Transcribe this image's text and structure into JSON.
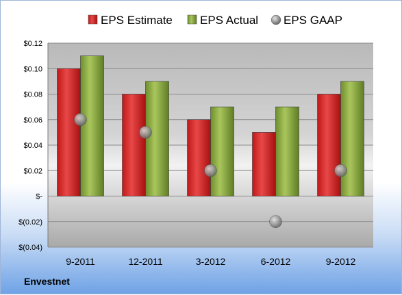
{
  "company": "Envestnet",
  "chart_data": {
    "type": "bar",
    "categories": [
      "9-2011",
      "12-2011",
      "3-2012",
      "6-2012",
      "9-2012"
    ],
    "series": [
      {
        "name": "EPS Estimate",
        "kind": "bar",
        "color": "#cc1f1f",
        "values": [
          0.1,
          0.08,
          0.06,
          0.05,
          0.08
        ]
      },
      {
        "name": "EPS Actual",
        "kind": "bar",
        "color": "#7d9c3b",
        "values": [
          0.11,
          0.09,
          0.07,
          0.07,
          0.09
        ]
      },
      {
        "name": "EPS GAAP",
        "kind": "marker",
        "color": "#8a8a8a",
        "values": [
          0.06,
          0.05,
          0.02,
          -0.02,
          0.02
        ]
      }
    ],
    "ylim": [
      -0.04,
      0.12
    ],
    "yticks": [
      {
        "value": 0.12,
        "label": "$0.12"
      },
      {
        "value": 0.1,
        "label": "$0.10"
      },
      {
        "value": 0.08,
        "label": "$0.08"
      },
      {
        "value": 0.06,
        "label": "$0.06"
      },
      {
        "value": 0.04,
        "label": "$0.04"
      },
      {
        "value": 0.02,
        "label": "$0.02"
      },
      {
        "value": 0.0,
        "label": "$-"
      },
      {
        "value": -0.02,
        "label": "$(0.02)"
      },
      {
        "value": -0.04,
        "label": "$(0.04)"
      }
    ],
    "grid": true,
    "legend_position": "top"
  }
}
